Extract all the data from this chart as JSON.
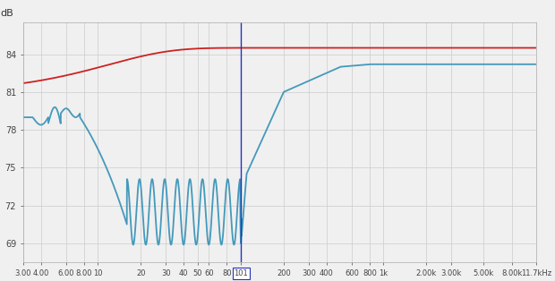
{
  "background_color": "#f0f0f0",
  "grid_color": "#cccccc",
  "red_line_color": "#cc2222",
  "blue_line_color": "#4499bb",
  "vline_color": "#2233bb",
  "vline_x": 101,
  "ylabel": "dB",
  "yticks": [
    69,
    72,
    75,
    78,
    81,
    84
  ],
  "ylim": [
    67.5,
    86.5
  ],
  "xlim_log": [
    3.0,
    11700
  ],
  "xtick_labels": [
    "3.00",
    "4.00",
    "6.00",
    "8.00",
    "10",
    "20",
    "30",
    "40",
    "50",
    "60",
    "80",
    "101",
    "200",
    "300",
    "400",
    "600",
    "800",
    "1k",
    "2.00k",
    "3.00k",
    "5.00k",
    "8.00k",
    "11.7kHz"
  ],
  "xtick_values": [
    3.0,
    4.0,
    6.0,
    8.0,
    10,
    20,
    30,
    40,
    50,
    60,
    80,
    101,
    200,
    300,
    400,
    600,
    800,
    1000,
    2000,
    3000,
    5000,
    8000,
    11700
  ]
}
